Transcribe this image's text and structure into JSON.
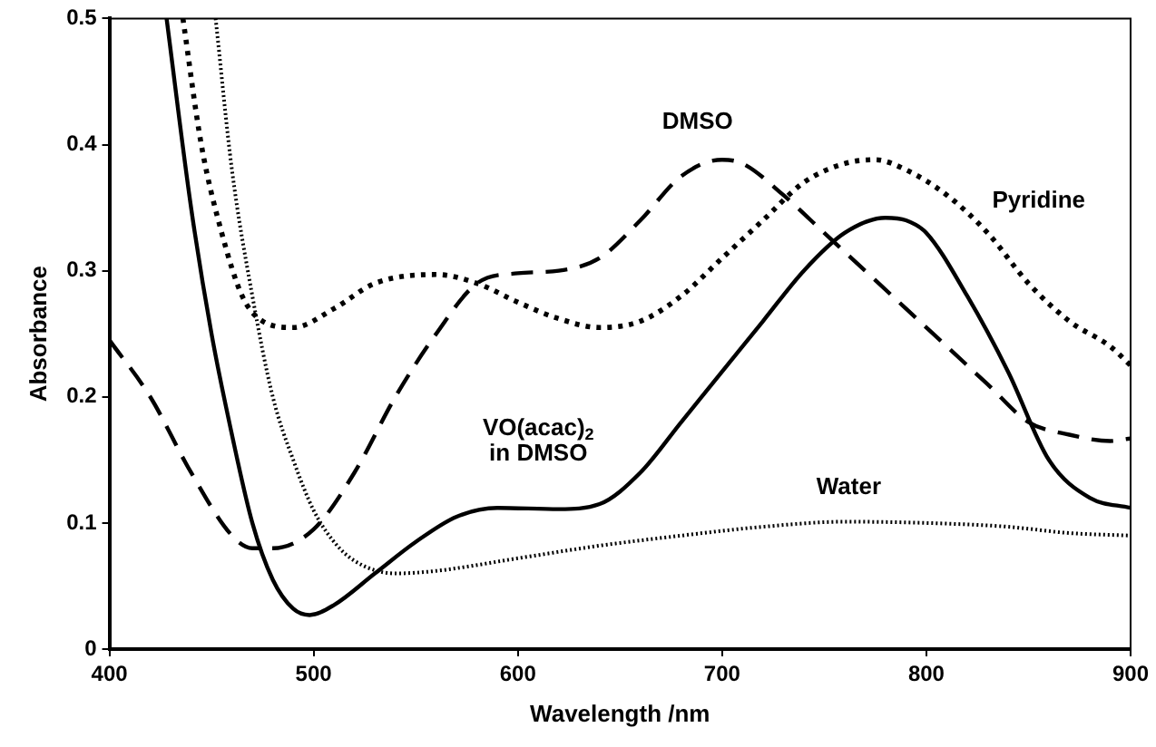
{
  "chart_data": {
    "type": "line",
    "xlabel": "Wavelength /nm",
    "ylabel": "Absorbance",
    "xlim": [
      400,
      900
    ],
    "xticks": [
      400,
      500,
      600,
      700,
      800,
      900
    ],
    "ylim": [
      0,
      0.5
    ],
    "yticks": [
      0,
      0.1,
      0.2,
      0.3,
      0.4,
      0.5
    ],
    "grid": false,
    "legend": false,
    "marker": "none",
    "series": [
      {
        "name": "DMSO",
        "color": "#000000",
        "line_style": "dashed",
        "x": [
          400,
          420,
          440,
          460,
          470,
          480,
          500,
          520,
          540,
          560,
          580,
          600,
          620,
          640,
          660,
          680,
          700,
          710,
          730,
          750,
          770,
          790,
          810,
          830,
          850,
          870,
          890,
          900
        ],
        "values": [
          0.245,
          0.2,
          0.14,
          0.09,
          0.08,
          0.08,
          0.095,
          0.14,
          0.2,
          0.25,
          0.29,
          0.298,
          0.3,
          0.31,
          0.34,
          0.375,
          0.388,
          0.385,
          0.36,
          0.33,
          0.3,
          0.27,
          0.24,
          0.21,
          0.18,
          0.17,
          0.165,
          0.167
        ]
      },
      {
        "name": "Pyridine",
        "color": "#000000",
        "line_style": "dotted",
        "x": [
          436,
          445,
          455,
          465,
          475,
          490,
          510,
          530,
          560,
          580,
          600,
          620,
          640,
          660,
          680,
          700,
          720,
          740,
          760,
          775,
          790,
          810,
          830,
          850,
          870,
          890,
          900
        ],
        "values": [
          0.5,
          0.4,
          0.33,
          0.28,
          0.26,
          0.255,
          0.27,
          0.29,
          0.297,
          0.29,
          0.275,
          0.262,
          0.255,
          0.26,
          0.28,
          0.31,
          0.34,
          0.37,
          0.385,
          0.388,
          0.38,
          0.36,
          0.33,
          0.29,
          0.26,
          0.24,
          0.225
        ]
      },
      {
        "name": "Water",
        "color": "#000000",
        "line_style": "dotted",
        "x": [
          452,
          460,
          470,
          480,
          490,
          500,
          510,
          520,
          540,
          560,
          600,
          640,
          680,
          720,
          760,
          800,
          840,
          870,
          900
        ],
        "values": [
          0.5,
          0.38,
          0.28,
          0.2,
          0.15,
          0.11,
          0.085,
          0.07,
          0.06,
          0.062,
          0.072,
          0.082,
          0.09,
          0.097,
          0.101,
          0.1,
          0.097,
          0.092,
          0.09
        ]
      },
      {
        "name": "VO(acac)$_{2}$ in DMSO",
        "color": "#000000",
        "line_style": "solid",
        "x": [
          428,
          440,
          450,
          460,
          470,
          480,
          490,
          498,
          510,
          530,
          550,
          570,
          590,
          620,
          640,
          660,
          680,
          700,
          720,
          740,
          760,
          780,
          790,
          800,
          820,
          840,
          860,
          880,
          900
        ],
        "values": [
          0.5,
          0.35,
          0.25,
          0.17,
          0.1,
          0.055,
          0.032,
          0.027,
          0.035,
          0.06,
          0.085,
          0.105,
          0.112,
          0.111,
          0.115,
          0.14,
          0.18,
          0.22,
          0.26,
          0.3,
          0.33,
          0.342,
          0.34,
          0.33,
          0.28,
          0.22,
          0.15,
          0.12,
          0.112
        ]
      }
    ]
  }
}
